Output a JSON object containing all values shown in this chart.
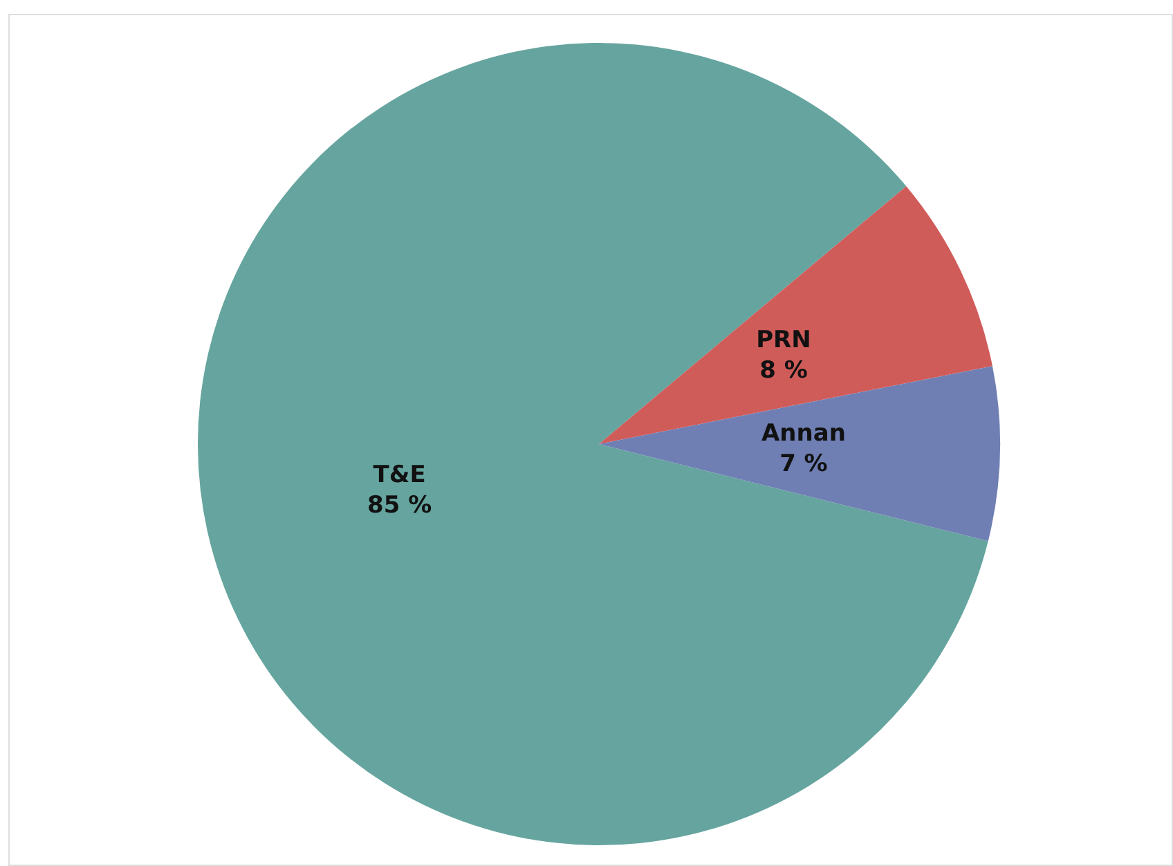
{
  "chart_data": {
    "type": "pie",
    "categories": [
      "T&E",
      "PRN",
      "Annan"
    ],
    "values": [
      85,
      8,
      7
    ],
    "value_labels": [
      "85 %",
      "8 %",
      "7 %"
    ],
    "colors": [
      "#66a59f",
      "#d05c5a",
      "#6f7fb4"
    ],
    "legend": false
  }
}
